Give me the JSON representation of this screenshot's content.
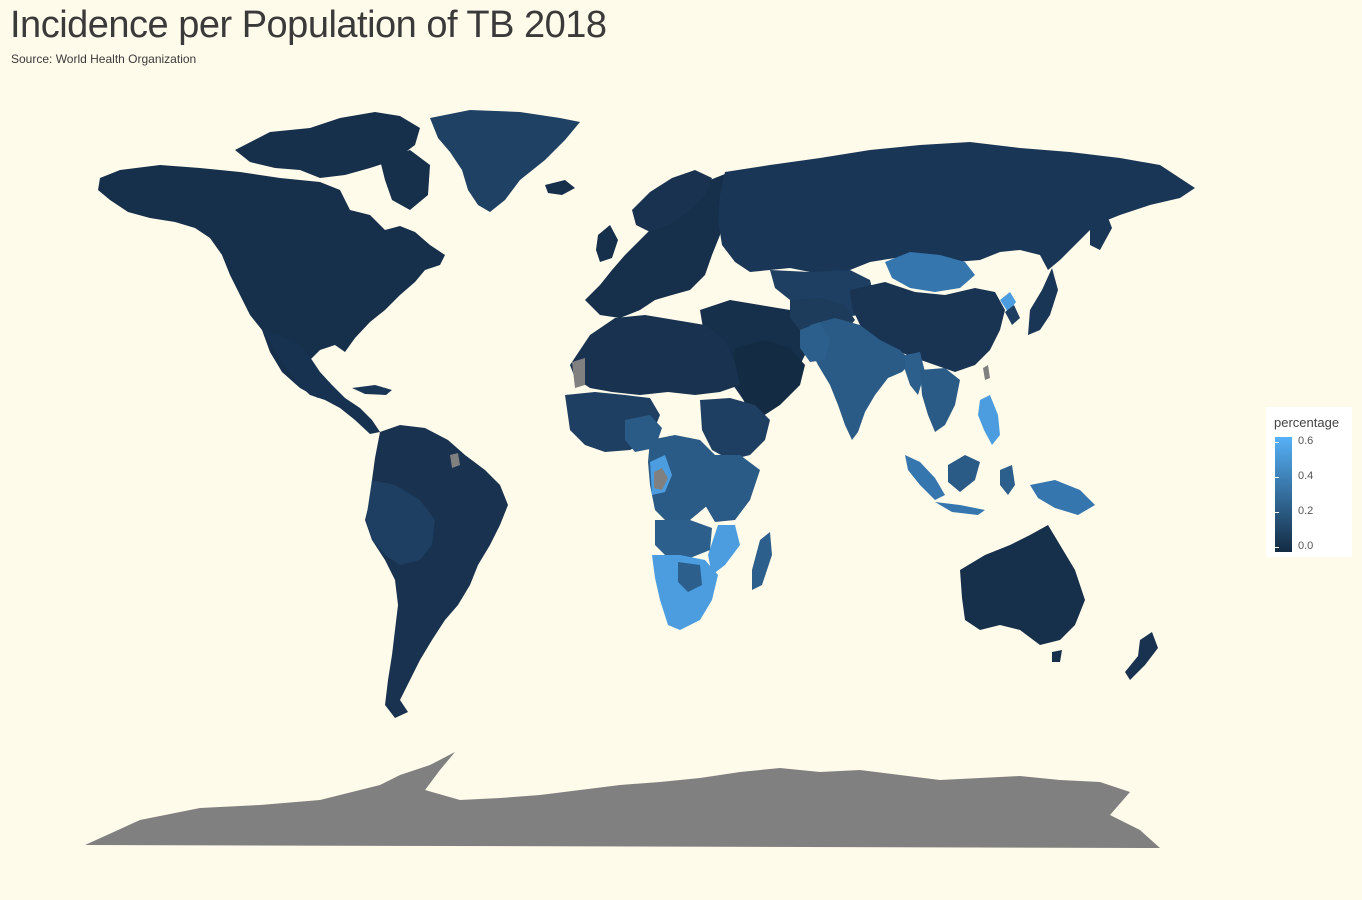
{
  "title": "Incidence per Population of TB 2018",
  "subtitle": "Source: World Health Organization",
  "legend": {
    "title": "percentage",
    "labels": [
      "0.6",
      "0.4",
      "0.2",
      "0.0"
    ],
    "low_color": "#132b43",
    "high_color": "#56b1f7",
    "na_color": "#808080"
  },
  "colors": {
    "background": "#fffbeb",
    "low": "#162f4b",
    "mid_low": "#1d3d5e",
    "mid": "#2a5b87",
    "mid_high": "#3576af",
    "high": "#4b9de0",
    "na": "#808080"
  }
}
